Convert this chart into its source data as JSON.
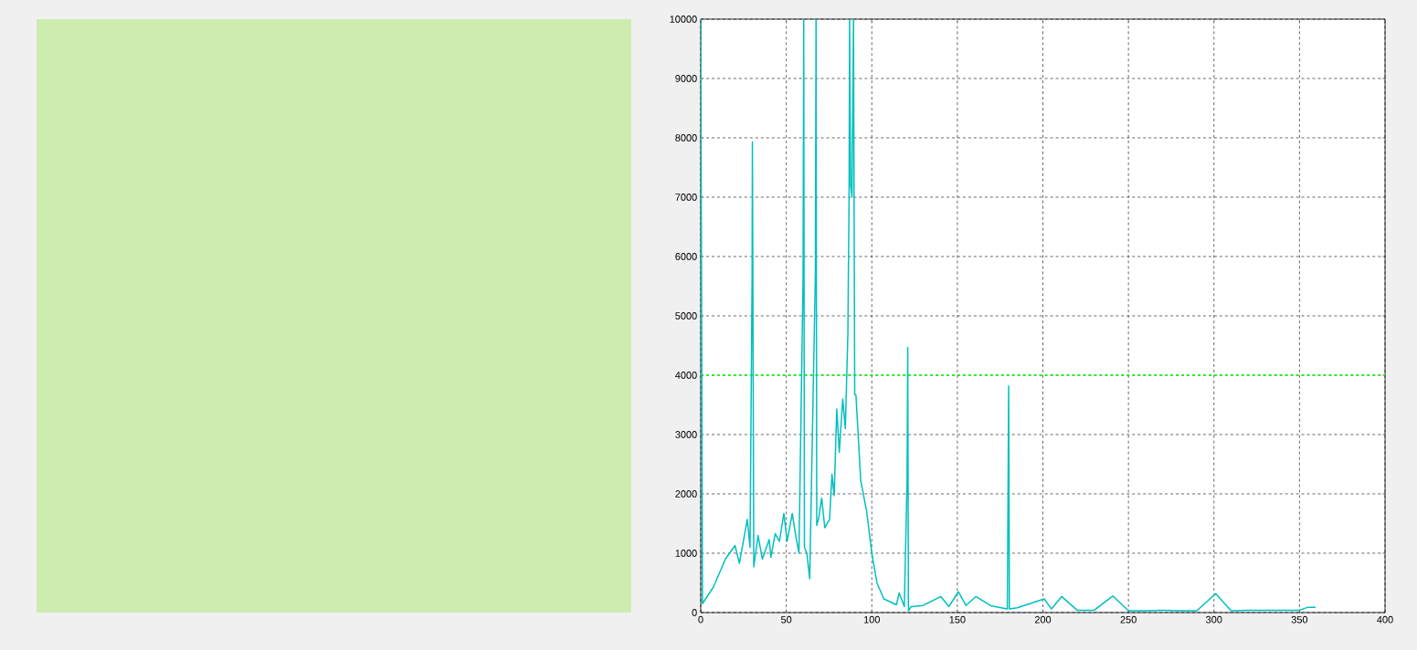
{
  "chart_data": {
    "type": "line",
    "x": [
      0,
      1,
      7.4,
      14.4,
      20,
      22.6,
      27.2,
      28.8,
      30,
      30.2,
      30.6,
      31,
      33.5,
      36,
      40,
      41,
      43.5,
      46,
      48.6,
      50.5,
      53.5,
      55.5,
      57.4,
      59.8,
      60.2,
      60.6,
      62,
      63.7,
      67,
      67.4,
      67.8,
      69,
      70.7,
      72.5,
      75.3,
      76.7,
      78,
      79.5,
      81,
      83,
      84.5,
      86,
      86.7,
      87,
      87.6,
      88.4,
      89.3,
      90,
      90.7,
      93.5,
      97,
      100,
      103,
      107,
      114.4,
      116,
      119,
      120.6,
      121,
      121.4,
      123,
      130,
      140.4,
      145,
      150.6,
      155,
      160.8,
      170,
      179.2,
      179.6,
      180,
      180.4,
      185,
      200.8,
      205,
      211,
      220,
      230,
      240.9,
      250,
      260,
      270,
      280,
      290,
      301,
      310,
      320,
      330,
      340,
      350,
      355,
      359.4
    ],
    "series": [
      {
        "color": "#00bfbf",
        "values": [
          10000,
          150,
          430,
          900,
          1130,
          830,
          1570,
          1100,
          5600,
          7930,
          4400,
          770,
          1300,
          900,
          1230,
          930,
          1330,
          1200,
          1670,
          1200,
          1670,
          1300,
          1000,
          5600,
          10000,
          1100,
          1000,
          570,
          5700,
          10000,
          1470,
          1600,
          1930,
          1430,
          1570,
          2330,
          1970,
          3430,
          2700,
          3600,
          3100,
          4700,
          7000,
          10000,
          7200,
          7000,
          10000,
          3670,
          3670,
          2230,
          1700,
          1000,
          500,
          230,
          130,
          330,
          100,
          2230,
          4470,
          30,
          100,
          120,
          270,
          100,
          350,
          120,
          270,
          110,
          60,
          1910,
          3820,
          60,
          80,
          230,
          60,
          270,
          40,
          40,
          280,
          30,
          30,
          40,
          30,
          30,
          320,
          30,
          40,
          40,
          40,
          40,
          90,
          90
        ]
      }
    ],
    "xlim": [
      0,
      400
    ],
    "ylim": [
      0,
      10000
    ],
    "xticks": [
      0,
      50,
      100,
      150,
      200,
      250,
      300,
      350,
      400
    ],
    "yticks": [
      0,
      1000,
      2000,
      3000,
      4000,
      5000,
      6000,
      7000,
      8000,
      9000,
      10000
    ],
    "grid": true,
    "ref_lines": [
      {
        "axis": "y",
        "value": 4000,
        "color": "#00ff00",
        "line_style": "dashed"
      }
    ]
  }
}
